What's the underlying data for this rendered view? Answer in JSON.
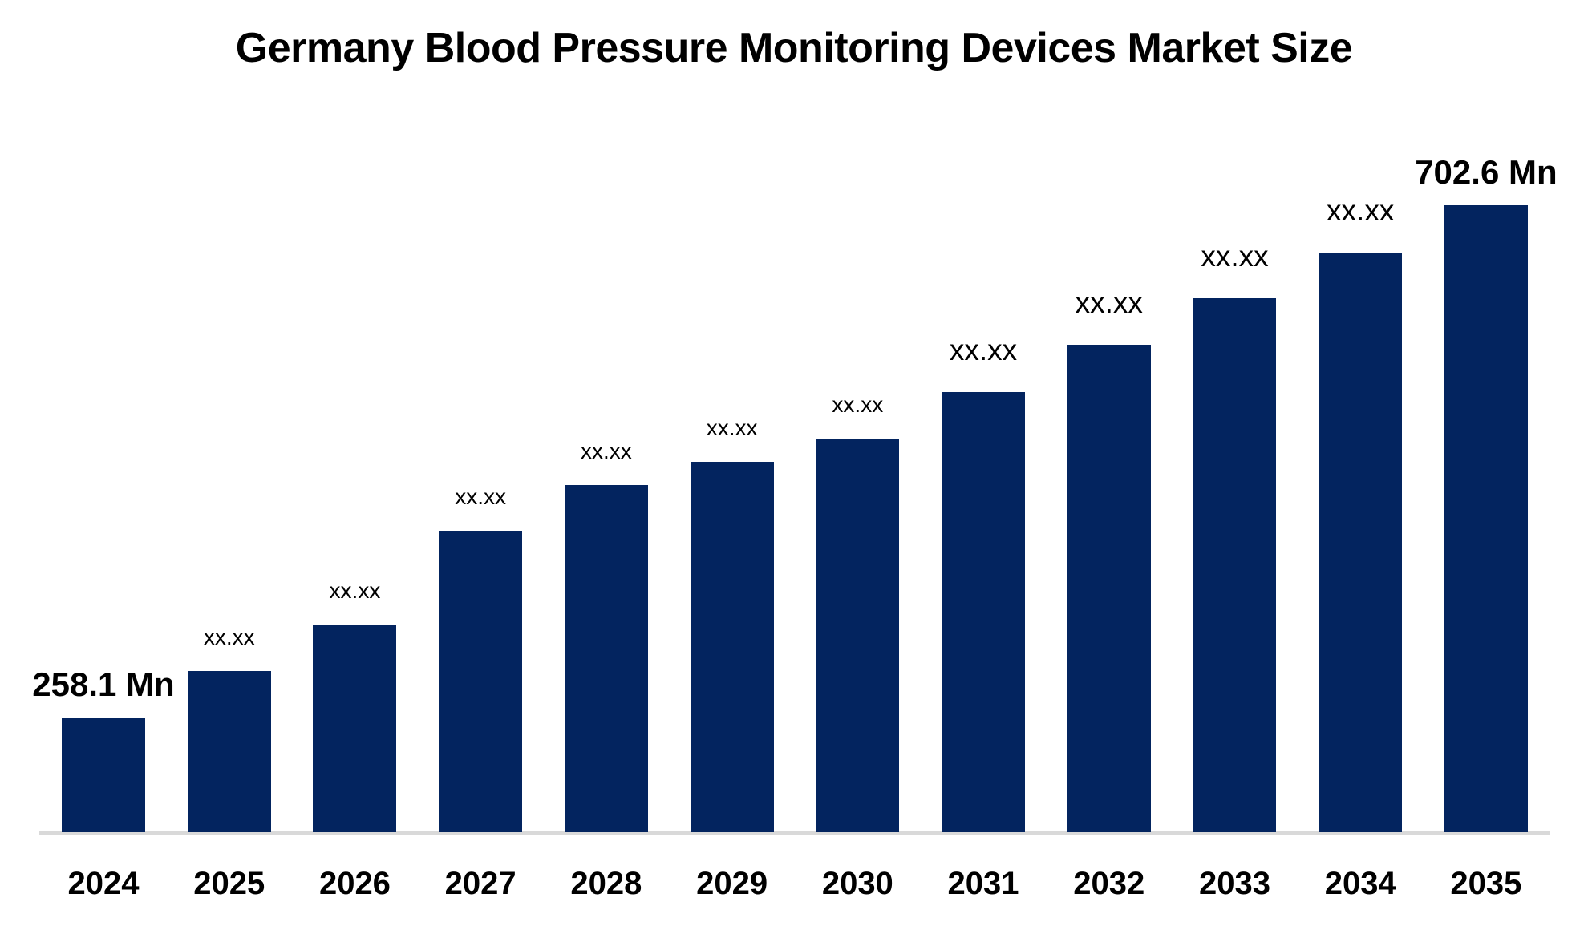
{
  "chart_data": {
    "type": "bar",
    "title": "Germany Blood Pressure Monitoring Devices Market Size",
    "unit": "Mn",
    "categories": [
      "2024",
      "2025",
      "2026",
      "2027",
      "2028",
      "2029",
      "2030",
      "2031",
      "2032",
      "2033",
      "2034",
      "2035"
    ],
    "values": [
      258.1,
      298.4,
      338.8,
      420.2,
      459.8,
      480.0,
      500.2,
      540.5,
      581.6,
      621.9,
      661.6,
      702.6
    ],
    "values_note": "only first and last values are printed on the chart; intermediate bars are masked with xx.xx and their values are estimated from bar heights",
    "value_labels": [
      "258.1 Mn",
      "xx.xx",
      "xx.xx",
      "xx.xx",
      "xx.xx",
      "xx.xx",
      "xx.xx",
      "xx.xx",
      "xx.xx",
      "xx.xx",
      "xx.xx",
      "702.6 Mn"
    ],
    "label_emphasis": [
      "strong",
      "small",
      "small",
      "small",
      "small",
      "small",
      "small",
      "medium",
      "medium",
      "medium",
      "medium",
      "strong"
    ],
    "xlabel": "",
    "ylabel": "",
    "grid": false,
    "legend": false,
    "bar_color": "#03245f",
    "axis_line_color": "#d9d9d9",
    "text_color": "#000000",
    "background_color": "#ffffff"
  }
}
